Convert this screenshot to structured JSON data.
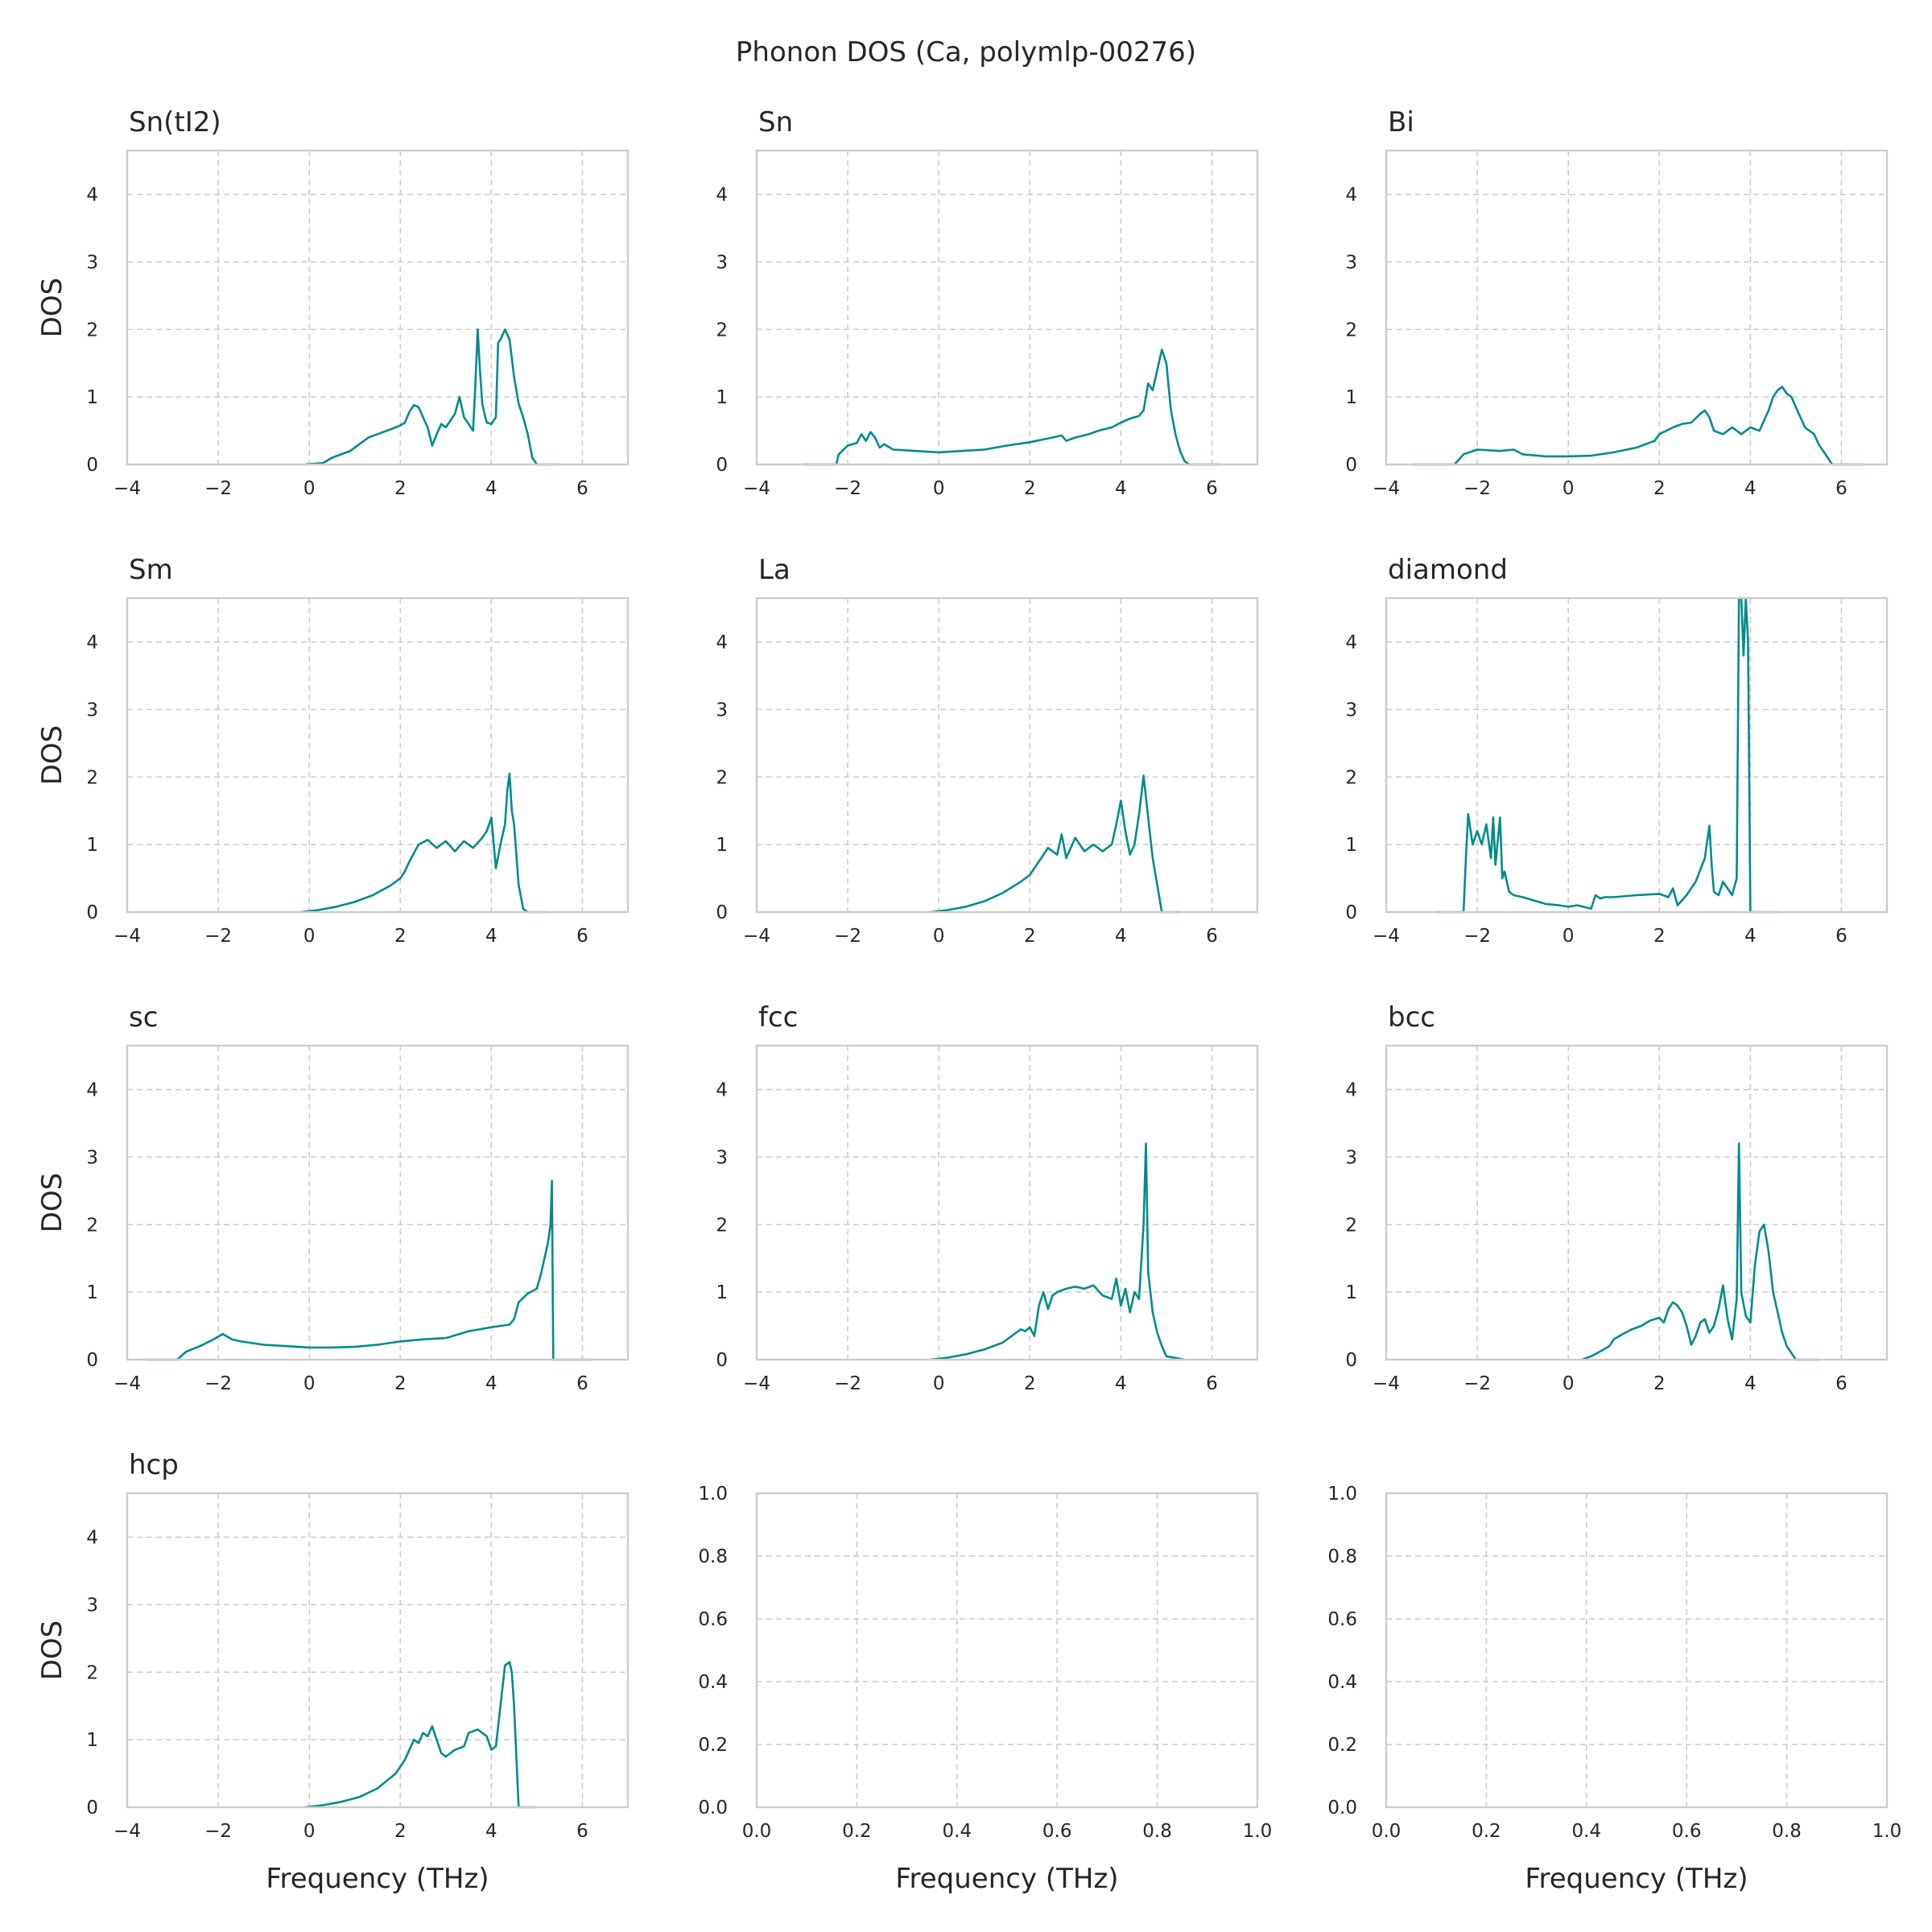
{
  "figure": {
    "suptitle": "Phonon DOS (Ca, polymlp-00276)",
    "line_color": "#008b8b",
    "grid_color": "#cccccc"
  },
  "chart_data": [
    {
      "type": "line",
      "title": "Sn(tI2)",
      "xlabel": "",
      "ylabel": "DOS",
      "xlim": [
        -4,
        7
      ],
      "ylim": [
        0,
        4.65
      ],
      "xticks": [
        -4,
        -2,
        0,
        2,
        4,
        6
      ],
      "yticks": [
        0,
        1,
        2,
        3,
        4
      ],
      "series": [
        {
          "x": [
            -0.1,
            0.3,
            0.5,
            0.7,
            0.9,
            1.1,
            1.3,
            1.5,
            1.7,
            1.9,
            2.0,
            2.1,
            2.2,
            2.3,
            2.4,
            2.5,
            2.6,
            2.7,
            2.8,
            2.9,
            3.0,
            3.1,
            3.2,
            3.3,
            3.4,
            3.5,
            3.6,
            3.65,
            3.7,
            3.75,
            3.8,
            3.85,
            3.9,
            4.0,
            4.1,
            4.15,
            4.2,
            4.3,
            4.4,
            4.5,
            4.6,
            4.7,
            4.8,
            4.9,
            5.0,
            5.5
          ],
          "y": [
            0,
            0.02,
            0.1,
            0.15,
            0.2,
            0.3,
            0.4,
            0.45,
            0.5,
            0.55,
            0.58,
            0.62,
            0.78,
            0.88,
            0.85,
            0.7,
            0.55,
            0.28,
            0.45,
            0.6,
            0.55,
            0.65,
            0.75,
            1.0,
            0.7,
            0.6,
            0.5,
            1.2,
            2.0,
            1.4,
            0.9,
            0.75,
            0.62,
            0.6,
            0.7,
            1.8,
            1.85,
            2.0,
            1.85,
            1.3,
            0.9,
            0.7,
            0.45,
            0.1,
            0,
            0
          ]
        }
      ]
    },
    {
      "type": "line",
      "title": "Sn",
      "xlabel": "",
      "ylabel": "",
      "xlim": [
        -4,
        7
      ],
      "ylim": [
        0,
        4.65
      ],
      "xticks": [
        -4,
        -2,
        0,
        2,
        4,
        6
      ],
      "yticks": [
        0,
        1,
        2,
        3,
        4
      ],
      "series": [
        {
          "x": [
            -3.0,
            -2.25,
            -2.2,
            -2.0,
            -1.8,
            -1.7,
            -1.6,
            -1.5,
            -1.4,
            -1.3,
            -1.2,
            -1.0,
            -0.5,
            0.0,
            0.5,
            1.0,
            1.5,
            2.0,
            2.5,
            2.7,
            2.8,
            3.0,
            3.3,
            3.5,
            3.8,
            4.0,
            4.2,
            4.4,
            4.5,
            4.6,
            4.7,
            4.8,
            4.9,
            5.0,
            5.1,
            5.2,
            5.3,
            5.4,
            5.5,
            6.2
          ],
          "y": [
            0,
            0,
            0.15,
            0.28,
            0.32,
            0.45,
            0.35,
            0.48,
            0.4,
            0.25,
            0.3,
            0.22,
            0.2,
            0.18,
            0.2,
            0.22,
            0.28,
            0.33,
            0.4,
            0.43,
            0.35,
            0.4,
            0.45,
            0.5,
            0.55,
            0.62,
            0.68,
            0.72,
            0.8,
            1.2,
            1.1,
            1.4,
            1.7,
            1.5,
            0.8,
            0.45,
            0.2,
            0.05,
            0,
            0
          ]
        }
      ]
    },
    {
      "type": "line",
      "title": "Bi",
      "xlabel": "",
      "ylabel": "",
      "xlim": [
        -4,
        7
      ],
      "ylim": [
        0,
        4.65
      ],
      "xticks": [
        -4,
        -2,
        0,
        2,
        4,
        6
      ],
      "yticks": [
        0,
        1,
        2,
        3,
        4
      ],
      "series": [
        {
          "x": [
            -3.4,
            -2.5,
            -2.3,
            -2.0,
            -1.5,
            -1.2,
            -1.0,
            -0.5,
            0.0,
            0.5,
            1.0,
            1.5,
            1.7,
            1.9,
            2.0,
            2.3,
            2.5,
            2.7,
            2.9,
            3.0,
            3.1,
            3.2,
            3.4,
            3.6,
            3.8,
            4.0,
            4.2,
            4.4,
            4.5,
            4.6,
            4.7,
            4.8,
            4.9,
            5.0,
            5.2,
            5.4,
            5.5,
            5.6,
            5.7,
            5.8,
            6.5
          ],
          "y": [
            0,
            0,
            0.15,
            0.22,
            0.2,
            0.22,
            0.15,
            0.12,
            0.12,
            0.13,
            0.18,
            0.25,
            0.3,
            0.35,
            0.45,
            0.55,
            0.6,
            0.62,
            0.75,
            0.8,
            0.7,
            0.5,
            0.45,
            0.55,
            0.45,
            0.55,
            0.5,
            0.8,
            1.0,
            1.1,
            1.15,
            1.05,
            1.0,
            0.85,
            0.55,
            0.45,
            0.3,
            0.2,
            0.1,
            0,
            0
          ]
        }
      ]
    },
    {
      "type": "line",
      "title": "Sm",
      "xlabel": "",
      "ylabel": "DOS",
      "xlim": [
        -4,
        7
      ],
      "ylim": [
        0,
        4.65
      ],
      "xticks": [
        -4,
        -2,
        0,
        2,
        4,
        6
      ],
      "yticks": [
        0,
        1,
        2,
        3,
        4
      ],
      "series": [
        {
          "x": [
            -0.2,
            0.2,
            0.6,
            1.0,
            1.4,
            1.8,
            2.0,
            2.1,
            2.2,
            2.4,
            2.6,
            2.8,
            3.0,
            3.2,
            3.4,
            3.6,
            3.8,
            3.9,
            4.0,
            4.1,
            4.2,
            4.3,
            4.35,
            4.4,
            4.45,
            4.5,
            4.6,
            4.7,
            4.8,
            5.2
          ],
          "y": [
            0,
            0.03,
            0.08,
            0.15,
            0.25,
            0.4,
            0.5,
            0.6,
            0.75,
            1.0,
            1.07,
            0.95,
            1.05,
            0.9,
            1.05,
            0.95,
            1.1,
            1.2,
            1.4,
            0.65,
            1.0,
            1.3,
            1.8,
            2.05,
            1.5,
            1.3,
            0.4,
            0.05,
            0,
            0
          ]
        }
      ]
    },
    {
      "type": "line",
      "title": "La",
      "xlabel": "",
      "ylabel": "",
      "xlim": [
        -4,
        7
      ],
      "ylim": [
        0,
        4.65
      ],
      "xticks": [
        -4,
        -2,
        0,
        2,
        4,
        6
      ],
      "yticks": [
        0,
        1,
        2,
        3,
        4
      ],
      "series": [
        {
          "x": [
            -0.2,
            0.2,
            0.6,
            1.0,
            1.4,
            1.8,
            2.0,
            2.2,
            2.4,
            2.6,
            2.7,
            2.8,
            3.0,
            3.2,
            3.4,
            3.6,
            3.8,
            3.9,
            4.0,
            4.1,
            4.2,
            4.3,
            4.4,
            4.5,
            4.6,
            4.7,
            4.8,
            4.9,
            5.3
          ],
          "y": [
            0,
            0.03,
            0.08,
            0.16,
            0.28,
            0.45,
            0.55,
            0.75,
            0.95,
            0.85,
            1.15,
            0.8,
            1.1,
            0.9,
            1.0,
            0.9,
            1.0,
            1.3,
            1.65,
            1.2,
            0.85,
            1.0,
            1.45,
            2.02,
            1.4,
            0.8,
            0.4,
            0,
            0
          ]
        }
      ]
    },
    {
      "type": "line",
      "title": "diamond",
      "xlabel": "",
      "ylabel": "",
      "xlim": [
        -4,
        7
      ],
      "ylim": [
        0,
        4.65
      ],
      "xticks": [
        -4,
        -2,
        0,
        2,
        4,
        6
      ],
      "yticks": [
        0,
        1,
        2,
        3,
        4
      ],
      "series": [
        {
          "x": [
            -2.9,
            -2.3,
            -2.25,
            -2.2,
            -2.1,
            -2.0,
            -1.9,
            -1.8,
            -1.7,
            -1.65,
            -1.6,
            -1.5,
            -1.45,
            -1.4,
            -1.3,
            -1.2,
            -1.0,
            -0.5,
            -0.2,
            0.0,
            0.2,
            0.5,
            0.6,
            0.7,
            0.8,
            1.0,
            1.5,
            2.0,
            2.2,
            2.3,
            2.4,
            2.6,
            2.8,
            3.0,
            3.1,
            3.15,
            3.2,
            3.3,
            3.4,
            3.5,
            3.6,
            3.7,
            3.75,
            3.8,
            3.85,
            3.9,
            3.95,
            4.0,
            4.6
          ],
          "y": [
            0,
            0,
            0.8,
            1.45,
            1.0,
            1.2,
            1.0,
            1.3,
            0.8,
            1.4,
            0.7,
            1.4,
            0.5,
            0.6,
            0.3,
            0.25,
            0.22,
            0.12,
            0.1,
            0.08,
            0.1,
            0.05,
            0.25,
            0.2,
            0.22,
            0.22,
            0.25,
            0.27,
            0.22,
            0.35,
            0.1,
            0.25,
            0.45,
            0.8,
            1.28,
            0.7,
            0.3,
            0.25,
            0.45,
            0.35,
            0.25,
            0.5,
            4.65,
            4.65,
            3.8,
            4.65,
            4.0,
            0,
            0
          ]
        }
      ]
    },
    {
      "type": "line",
      "title": "sc",
      "xlabel": "",
      "ylabel": "DOS",
      "xlim": [
        -4,
        7
      ],
      "ylim": [
        0,
        4.65
      ],
      "xticks": [
        -4,
        -2,
        0,
        2,
        4,
        6
      ],
      "yticks": [
        0,
        1,
        2,
        3,
        4
      ],
      "series": [
        {
          "x": [
            -3.6,
            -2.9,
            -2.7,
            -2.4,
            -2.1,
            -1.9,
            -1.7,
            -1.5,
            -1.0,
            -0.5,
            0.0,
            0.5,
            1.0,
            1.5,
            2.0,
            2.5,
            3.0,
            3.5,
            4.0,
            4.2,
            4.4,
            4.5,
            4.6,
            4.8,
            5.0,
            5.1,
            5.2,
            5.25,
            5.3,
            5.33,
            5.36,
            5.5,
            6.2
          ],
          "y": [
            0,
            0,
            0.12,
            0.2,
            0.3,
            0.38,
            0.3,
            0.27,
            0.22,
            0.2,
            0.18,
            0.18,
            0.19,
            0.22,
            0.27,
            0.3,
            0.32,
            0.42,
            0.48,
            0.5,
            0.52,
            0.6,
            0.85,
            0.98,
            1.05,
            1.3,
            1.6,
            1.75,
            2.0,
            2.65,
            0,
            0,
            0
          ]
        }
      ]
    },
    {
      "type": "line",
      "title": "fcc",
      "xlabel": "",
      "ylabel": "",
      "xlim": [
        -4,
        7
      ],
      "ylim": [
        0,
        4.65
      ],
      "xticks": [
        -4,
        -2,
        0,
        2,
        4,
        6
      ],
      "yticks": [
        0,
        1,
        2,
        3,
        4
      ],
      "series": [
        {
          "x": [
            -0.2,
            0.2,
            0.6,
            1.0,
            1.4,
            1.8,
            1.9,
            2.0,
            2.1,
            2.2,
            2.3,
            2.4,
            2.5,
            2.6,
            2.8,
            3.0,
            3.2,
            3.4,
            3.6,
            3.8,
            3.9,
            4.0,
            4.1,
            4.2,
            4.3,
            4.4,
            4.5,
            4.55,
            4.6,
            4.7,
            4.8,
            4.9,
            5.0,
            5.4
          ],
          "y": [
            0,
            0.03,
            0.08,
            0.15,
            0.25,
            0.45,
            0.42,
            0.48,
            0.35,
            0.8,
            1.0,
            0.75,
            0.95,
            1.0,
            1.05,
            1.08,
            1.05,
            1.1,
            0.95,
            0.9,
            1.2,
            0.8,
            1.05,
            0.7,
            1.0,
            0.9,
            2.0,
            3.2,
            1.3,
            0.7,
            0.4,
            0.2,
            0.05,
            0
          ]
        }
      ]
    },
    {
      "type": "line",
      "title": "bcc",
      "xlabel": "",
      "ylabel": "",
      "xlim": [
        -4,
        7
      ],
      "ylim": [
        0,
        4.65
      ],
      "xticks": [
        -4,
        -2,
        0,
        2,
        4,
        6
      ],
      "yticks": [
        0,
        1,
        2,
        3,
        4
      ],
      "series": [
        {
          "x": [
            0.3,
            0.5,
            0.7,
            0.9,
            1.0,
            1.2,
            1.4,
            1.6,
            1.8,
            2.0,
            2.1,
            2.2,
            2.3,
            2.4,
            2.5,
            2.6,
            2.7,
            2.8,
            2.9,
            3.0,
            3.1,
            3.2,
            3.3,
            3.4,
            3.5,
            3.6,
            3.7,
            3.75,
            3.8,
            3.9,
            4.0,
            4.1,
            4.2,
            4.3,
            4.4,
            4.5,
            4.6,
            4.7,
            4.8,
            4.9,
            5.0,
            5.5
          ],
          "y": [
            0,
            0.05,
            0.12,
            0.2,
            0.3,
            0.38,
            0.45,
            0.5,
            0.58,
            0.62,
            0.55,
            0.75,
            0.85,
            0.8,
            0.7,
            0.5,
            0.22,
            0.35,
            0.55,
            0.6,
            0.4,
            0.5,
            0.75,
            1.1,
            0.6,
            0.3,
            0.9,
            3.2,
            1.0,
            0.65,
            0.55,
            1.4,
            1.9,
            2.0,
            1.6,
            1.0,
            0.7,
            0.4,
            0.2,
            0.1,
            0,
            0
          ]
        }
      ]
    },
    {
      "type": "line",
      "title": "hcp",
      "xlabel": "Frequency (THz)",
      "ylabel": "DOS",
      "xlim": [
        -4,
        7
      ],
      "ylim": [
        0,
        4.65
      ],
      "xticks": [
        -4,
        -2,
        0,
        2,
        4,
        6
      ],
      "yticks": [
        0,
        1,
        2,
        3,
        4
      ],
      "series": [
        {
          "x": [
            -0.1,
            0.3,
            0.7,
            1.1,
            1.5,
            1.9,
            2.1,
            2.2,
            2.3,
            2.4,
            2.5,
            2.6,
            2.7,
            2.8,
            2.9,
            3.0,
            3.2,
            3.4,
            3.5,
            3.7,
            3.9,
            4.0,
            4.1,
            4.2,
            4.3,
            4.4,
            4.45,
            4.5,
            4.6,
            4.7,
            5.0
          ],
          "y": [
            0,
            0.03,
            0.08,
            0.15,
            0.28,
            0.5,
            0.7,
            0.85,
            1.0,
            0.95,
            1.1,
            1.05,
            1.2,
            1.0,
            0.8,
            0.75,
            0.85,
            0.9,
            1.1,
            1.15,
            1.05,
            0.85,
            0.9,
            1.5,
            2.1,
            2.15,
            2.0,
            1.5,
            0,
            0,
            0
          ]
        }
      ]
    },
    {
      "type": "line",
      "title": "",
      "xlabel": "Frequency (THz)",
      "ylabel": "",
      "xlim": [
        0,
        1
      ],
      "ylim": [
        0,
        1
      ],
      "xticks": [
        0.0,
        0.2,
        0.4,
        0.6,
        0.8,
        1.0
      ],
      "yticks": [
        0.0,
        0.2,
        0.4,
        0.6,
        0.8,
        1.0
      ],
      "series": []
    },
    {
      "type": "line",
      "title": "",
      "xlabel": "Frequency (THz)",
      "ylabel": "",
      "xlim": [
        0,
        1
      ],
      "ylim": [
        0,
        1
      ],
      "xticks": [
        0.0,
        0.2,
        0.4,
        0.6,
        0.8,
        1.0
      ],
      "yticks": [
        0.0,
        0.2,
        0.4,
        0.6,
        0.8,
        1.0
      ],
      "series": []
    }
  ]
}
